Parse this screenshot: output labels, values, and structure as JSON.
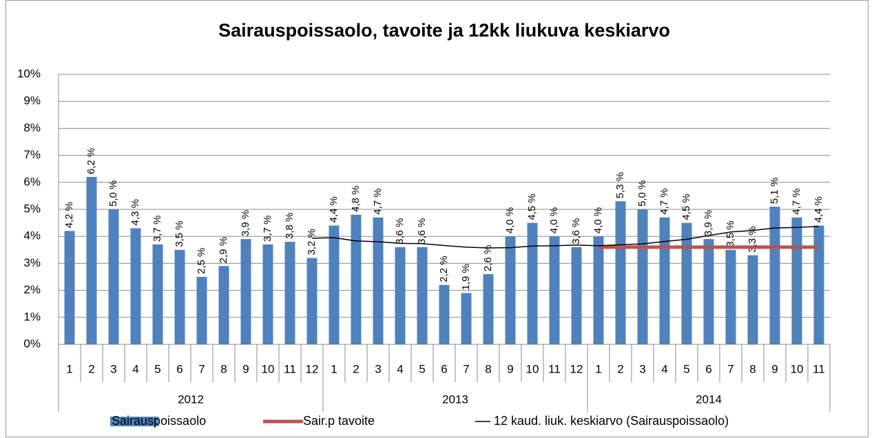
{
  "chart_data": {
    "type": "bar",
    "title": "Sairauspoissaolo, tavoite ja 12kk liukuva keskiarvo",
    "categories": [
      "1",
      "2",
      "3",
      "4",
      "5",
      "6",
      "7",
      "8",
      "9",
      "10",
      "11",
      "12",
      "1",
      "2",
      "3",
      "4",
      "5",
      "6",
      "7",
      "8",
      "9",
      "10",
      "11",
      "12",
      "1",
      "2",
      "3",
      "4",
      "5",
      "6",
      "7",
      "8",
      "9",
      "10",
      "11"
    ],
    "groups": [
      {
        "name": "2012",
        "count": 12
      },
      {
        "name": "2013",
        "count": 12
      },
      {
        "name": "2014",
        "count": 11
      }
    ],
    "ylim": [
      0,
      10
    ],
    "yticks": [
      {
        "value": 0,
        "label": "0%"
      },
      {
        "value": 1,
        "label": "1%"
      },
      {
        "value": 2,
        "label": "2%"
      },
      {
        "value": 3,
        "label": "3%"
      },
      {
        "value": 4,
        "label": "4%"
      },
      {
        "value": 5,
        "label": "5%"
      },
      {
        "value": 6,
        "label": "6%"
      },
      {
        "value": 7,
        "label": "7%"
      },
      {
        "value": 8,
        "label": "8%"
      },
      {
        "value": 9,
        "label": "9%"
      },
      {
        "value": 10,
        "label": "10%"
      }
    ],
    "grid": true,
    "legend": "bottom",
    "series": [
      {
        "name": "Sairauspoissaolo",
        "type": "bar",
        "color": "#4f81bd",
        "values": [
          4.2,
          6.2,
          5.0,
          4.3,
          3.7,
          3.5,
          2.5,
          2.9,
          3.9,
          3.7,
          3.8,
          3.2,
          4.4,
          4.8,
          4.7,
          3.6,
          3.6,
          2.2,
          1.9,
          2.6,
          4.0,
          4.5,
          4.0,
          3.6,
          4.0,
          5.3,
          5.0,
          4.7,
          4.5,
          3.9,
          3.5,
          3.3,
          5.1,
          4.7,
          4.4
        ],
        "value_labels": [
          "4,2 %",
          "6,2 %",
          "5,0 %",
          "4,3 %",
          "3,7 %",
          "3,5 %",
          "2,5 %",
          "2,9 %",
          "3,9 %",
          "3,7 %",
          "3,8 %",
          "3,2 %",
          "4,4 %",
          "4,8 %",
          "4,7 %",
          "3,6 %",
          "3,6 %",
          "2,2 %",
          "1,9 %",
          "2,6 %",
          "4,0 %",
          "4,5 %",
          "4,0 %",
          "3,6 %",
          "4,0 %",
          "5,3 %",
          "5,0 %",
          "4,7 %",
          "4,5 %",
          "3,9 %",
          "3,5 %",
          "3,3 %",
          "5,1 %",
          "4,7 %",
          "4,4 %"
        ]
      },
      {
        "name": "Sair.p tavoite",
        "type": "line",
        "color": "#c0504d",
        "values": [
          null,
          null,
          null,
          null,
          null,
          null,
          null,
          null,
          null,
          null,
          null,
          null,
          null,
          null,
          null,
          null,
          null,
          null,
          null,
          null,
          null,
          null,
          null,
          null,
          3.6,
          3.6,
          3.6,
          3.6,
          3.6,
          3.6,
          3.6,
          3.6,
          3.6,
          3.6,
          3.6
        ]
      },
      {
        "name": "12 kaud. liuk. keskiarvo (Sairauspoissaolo)",
        "type": "line",
        "color": "#000000",
        "values": [
          null,
          null,
          null,
          null,
          null,
          null,
          null,
          null,
          null,
          null,
          null,
          3.93,
          3.95,
          3.83,
          3.8,
          3.74,
          3.73,
          3.66,
          3.6,
          3.57,
          3.58,
          3.64,
          3.65,
          3.68,
          3.65,
          3.69,
          3.72,
          3.81,
          3.89,
          4.03,
          4.16,
          4.22,
          4.31,
          4.33,
          4.37
        ]
      }
    ]
  }
}
